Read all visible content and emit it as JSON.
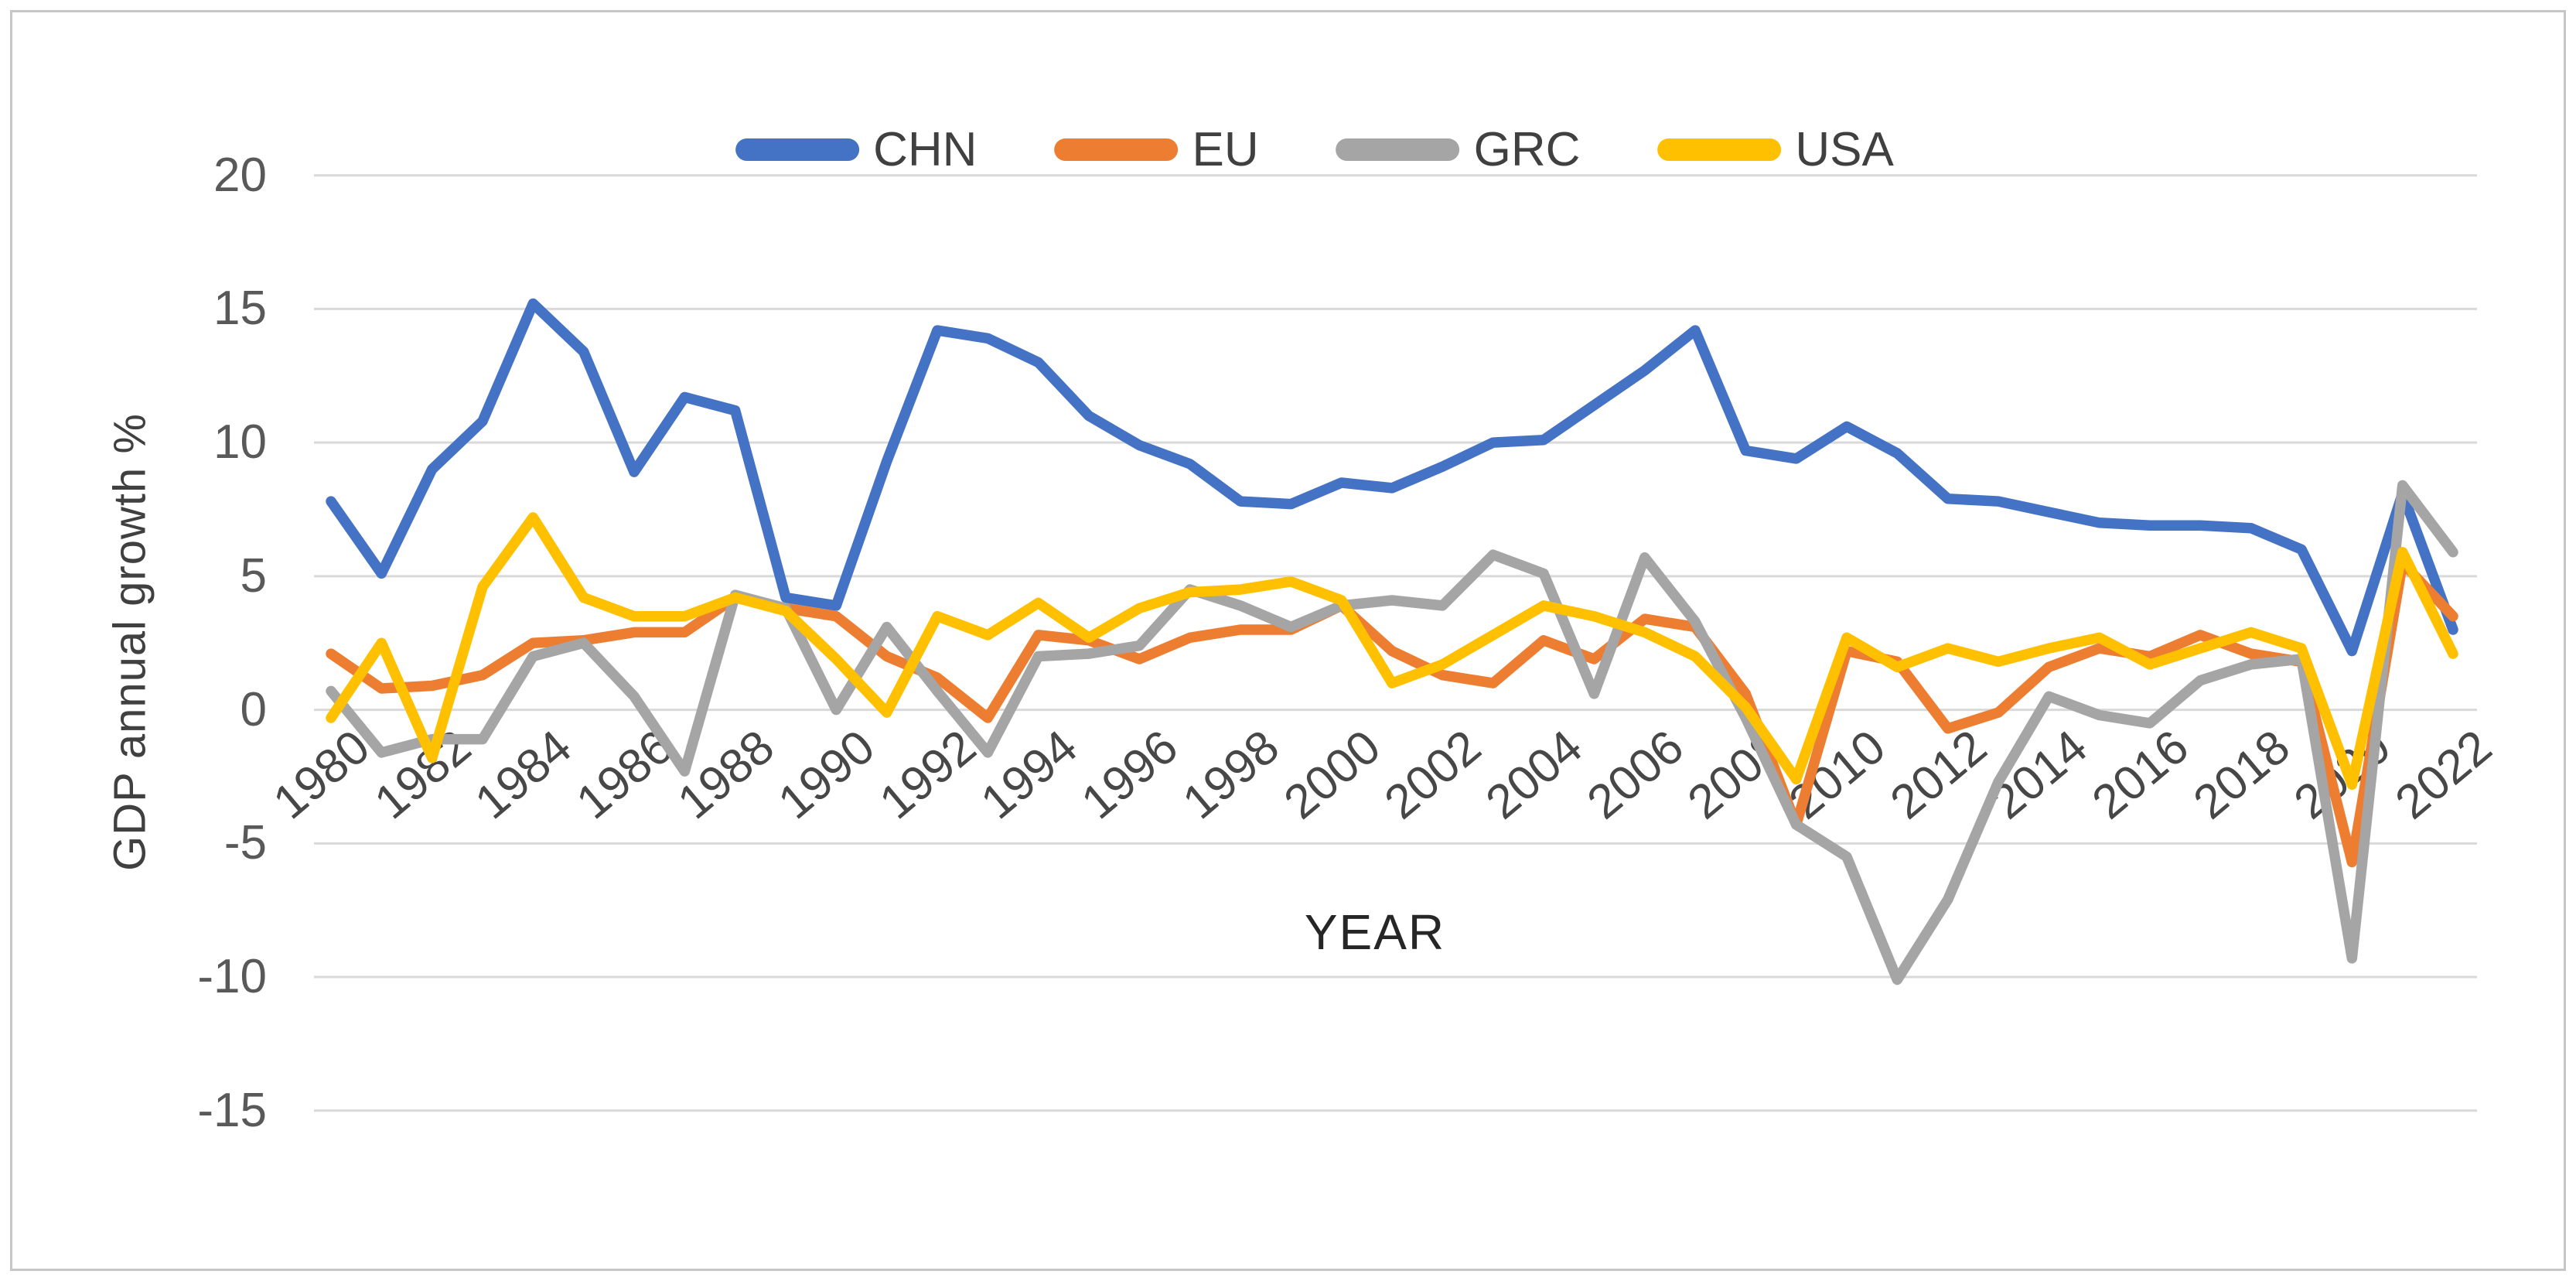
{
  "chart_data": {
    "type": "line",
    "title": "",
    "xlabel": "YEAR",
    "ylabel": "GDP annual growth %",
    "grid": true,
    "legend_position": "top-center",
    "ylim": [
      -15,
      20
    ],
    "ytick_values": [
      20,
      15,
      10,
      5,
      0,
      -5,
      -10,
      -15
    ],
    "ytick_labels": [
      "20",
      "15",
      "10",
      "5",
      "0",
      "-5",
      "-10",
      "-15"
    ],
    "x": [
      1980,
      1981,
      1982,
      1983,
      1984,
      1985,
      1986,
      1987,
      1988,
      1989,
      1990,
      1991,
      1992,
      1993,
      1994,
      1995,
      1996,
      1997,
      1998,
      1999,
      2000,
      2001,
      2002,
      2003,
      2004,
      2005,
      2006,
      2007,
      2008,
      2009,
      2010,
      2011,
      2012,
      2013,
      2014,
      2015,
      2016,
      2017,
      2018,
      2019,
      2020,
      2021,
      2022
    ],
    "x_tick_years": [
      1980,
      1982,
      1984,
      1986,
      1988,
      1990,
      1992,
      1994,
      1996,
      1998,
      2000,
      2002,
      2004,
      2006,
      2008,
      2010,
      2012,
      2014,
      2016,
      2018,
      2020,
      2022
    ],
    "x_tick_labels": [
      "1980",
      "1982",
      "1984",
      "1986",
      "1988",
      "1990",
      "1992",
      "1994",
      "1996",
      "1998",
      "2000",
      "2002",
      "2004",
      "2006",
      "2008",
      "2010",
      "2012",
      "2014",
      "2016",
      "2018",
      "2020",
      "2022"
    ],
    "series": [
      {
        "name": "CHN",
        "color": "#4472C4",
        "values": [
          7.8,
          5.1,
          9.0,
          10.8,
          15.2,
          13.4,
          8.9,
          11.7,
          11.2,
          4.2,
          3.9,
          9.3,
          14.2,
          13.9,
          13.0,
          11.0,
          9.9,
          9.2,
          7.8,
          7.7,
          8.5,
          8.3,
          9.1,
          10.0,
          10.1,
          11.4,
          12.7,
          14.2,
          9.7,
          9.4,
          10.6,
          9.6,
          7.9,
          7.8,
          7.4,
          7.0,
          6.9,
          6.9,
          6.8,
          6.0,
          2.2,
          8.1,
          3.0
        ]
      },
      {
        "name": "EU",
        "color": "#ED7D31",
        "values": [
          2.1,
          0.8,
          0.9,
          1.3,
          2.5,
          2.6,
          2.9,
          2.9,
          4.2,
          3.8,
          3.5,
          2.0,
          1.2,
          -0.3,
          2.8,
          2.6,
          1.9,
          2.7,
          3.0,
          3.0,
          3.9,
          2.2,
          1.3,
          1.0,
          2.6,
          1.9,
          3.4,
          3.1,
          0.6,
          -4.3,
          2.2,
          1.8,
          -0.7,
          -0.1,
          1.6,
          2.3,
          2.0,
          2.8,
          2.1,
          1.8,
          -5.7,
          5.5,
          3.5
        ]
      },
      {
        "name": "GRC",
        "color": "#A5A5A5",
        "values": [
          0.7,
          -1.6,
          -1.1,
          -1.1,
          2.0,
          2.5,
          0.5,
          -2.3,
          4.3,
          3.8,
          0.0,
          3.1,
          0.7,
          -1.6,
          2.0,
          2.1,
          2.4,
          4.5,
          3.9,
          3.1,
          3.9,
          4.1,
          3.9,
          5.8,
          5.1,
          0.6,
          5.7,
          3.3,
          -0.3,
          -4.3,
          -5.5,
          -10.1,
          -7.1,
          -2.7,
          0.5,
          -0.2,
          -0.5,
          1.1,
          1.7,
          1.9,
          -9.3,
          8.4,
          5.9
        ]
      },
      {
        "name": "USA",
        "color": "#FFC000",
        "values": [
          -0.3,
          2.5,
          -1.8,
          4.6,
          7.2,
          4.2,
          3.5,
          3.5,
          4.2,
          3.7,
          1.9,
          -0.1,
          3.5,
          2.8,
          4.0,
          2.7,
          3.8,
          4.4,
          4.5,
          4.8,
          4.1,
          1.0,
          1.7,
          2.8,
          3.9,
          3.5,
          2.9,
          2.0,
          0.1,
          -2.6,
          2.7,
          1.6,
          2.3,
          1.8,
          2.3,
          2.7,
          1.7,
          2.3,
          2.9,
          2.3,
          -2.8,
          5.9,
          2.1
        ]
      }
    ]
  }
}
